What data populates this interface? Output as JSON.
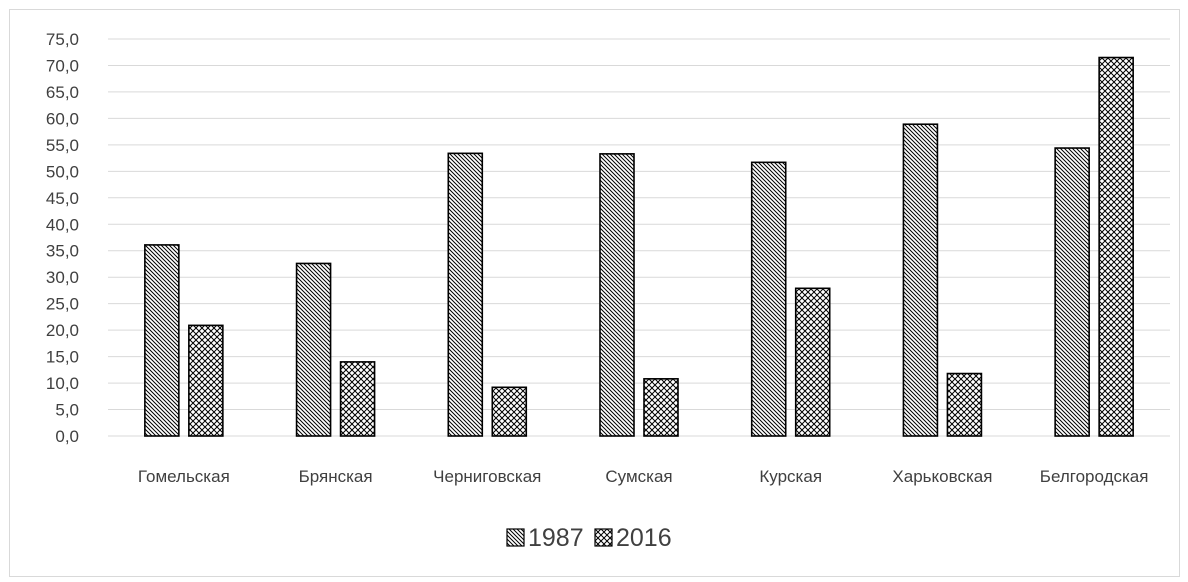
{
  "chart_data": {
    "type": "bar",
    "categories": [
      "Гомельская",
      "Брянская",
      "Черниговская",
      "Сумская",
      "Курская",
      "Харьковская",
      "Белгородская"
    ],
    "series": [
      {
        "name": "1987",
        "values": [
          36.1,
          32.6,
          53.4,
          53.3,
          51.7,
          58.9,
          54.4
        ],
        "pattern": "diagonal"
      },
      {
        "name": "2016",
        "values": [
          20.9,
          14.0,
          9.2,
          10.8,
          27.9,
          11.8,
          71.5
        ],
        "pattern": "crosshatch"
      }
    ],
    "ylim": [
      0,
      75
    ],
    "ytick_step": 5,
    "ytick_labels": [
      "0,0",
      "5,0",
      "10,0",
      "15,0",
      "20,0",
      "25,0",
      "30,0",
      "35,0",
      "40,0",
      "45,0",
      "50,0",
      "55,0",
      "60,0",
      "65,0",
      "70,0",
      "75,0"
    ],
    "grid": true,
    "legend": "bottom-center",
    "colors": {
      "grid": "#d9d9d9",
      "bar_stroke": "#000000",
      "pattern": "#000000",
      "text": "#404040"
    }
  }
}
